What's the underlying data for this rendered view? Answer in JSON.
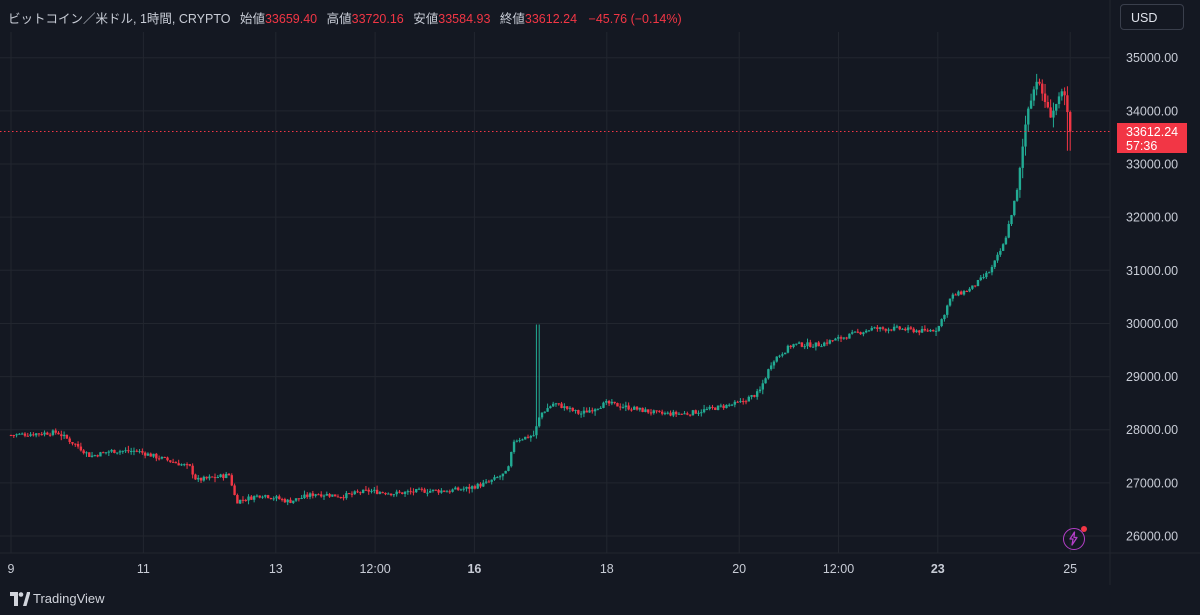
{
  "legend": {
    "symbol": "ビットコイン／米ドル, 1時間, CRYPTO",
    "open_label": "始値",
    "open_value": "33659.40",
    "high_label": "高値",
    "high_value": "33720.16",
    "low_label": "安値",
    "low_value": "33584.93",
    "close_label": "終値",
    "close_value": "33612.24",
    "change": "−45.76 (−0.14%)"
  },
  "currency_button": "USD",
  "price_tag": {
    "price": "33612.24",
    "countdown": "57:36"
  },
  "footer": {
    "brand": "TradingView"
  },
  "colors": {
    "up": "#22ab94",
    "down": "#f23645",
    "background": "#141822",
    "grid": "#22262f"
  },
  "chart_data": {
    "type": "candlestick",
    "title": "ビットコイン／米ドル, 1時間, CRYPTO",
    "interval": "1時間",
    "x_tick_labels": [
      "9",
      "11",
      "13",
      "12:00",
      "16",
      "18",
      "20",
      "12:00",
      "23",
      "25"
    ],
    "bold_x_ticks": [
      "16",
      "23"
    ],
    "y_tick_labels": [
      "35000.00",
      "34000.00",
      "33000.00",
      "32000.00",
      "31000.00",
      "30000.00",
      "29000.00",
      "28000.00",
      "27000.00",
      "26000.00"
    ],
    "ylim": [
      25600,
      35500
    ],
    "current_price": 33612.24,
    "grid": true,
    "price_path_approx": [
      [
        9.0,
        27900
      ],
      [
        9.7,
        27950
      ],
      [
        10.0,
        27700
      ],
      [
        10.2,
        27500
      ],
      [
        10.5,
        27600
      ],
      [
        10.9,
        27600
      ],
      [
        11.3,
        27450
      ],
      [
        11.7,
        27300
      ],
      [
        11.8,
        27050
      ],
      [
        12.3,
        27150
      ],
      [
        12.4,
        26650
      ],
      [
        12.8,
        26780
      ],
      [
        13.2,
        26650
      ],
      [
        13.6,
        26800
      ],
      [
        14.0,
        26750
      ],
      [
        14.4,
        26850
      ],
      [
        14.8,
        26800
      ],
      [
        15.2,
        26850
      ],
      [
        15.6,
        26850
      ],
      [
        15.9,
        26900
      ],
      [
        16.2,
        27000
      ],
      [
        16.5,
        27200
      ],
      [
        16.6,
        27800
      ],
      [
        16.9,
        27900
      ],
      [
        17.0,
        28300
      ],
      [
        17.2,
        28500
      ],
      [
        17.6,
        28300
      ],
      [
        18.0,
        28500
      ],
      [
        18.4,
        28400
      ],
      [
        18.8,
        28300
      ],
      [
        19.2,
        28300
      ],
      [
        19.6,
        28400
      ],
      [
        20.0,
        28500
      ],
      [
        20.3,
        28700
      ],
      [
        20.5,
        29300
      ],
      [
        20.8,
        29600
      ],
      [
        21.2,
        29600
      ],
      [
        21.6,
        29750
      ],
      [
        22.0,
        29900
      ],
      [
        22.4,
        29900
      ],
      [
        22.8,
        29850
      ],
      [
        23.0,
        29900
      ],
      [
        23.2,
        30500
      ],
      [
        23.5,
        30650
      ],
      [
        23.8,
        31000
      ],
      [
        24.0,
        31500
      ],
      [
        24.2,
        32500
      ],
      [
        24.35,
        34000
      ],
      [
        24.5,
        34600
      ],
      [
        24.7,
        33900
      ],
      [
        24.9,
        34400
      ],
      [
        25.0,
        33612.24
      ]
    ]
  }
}
